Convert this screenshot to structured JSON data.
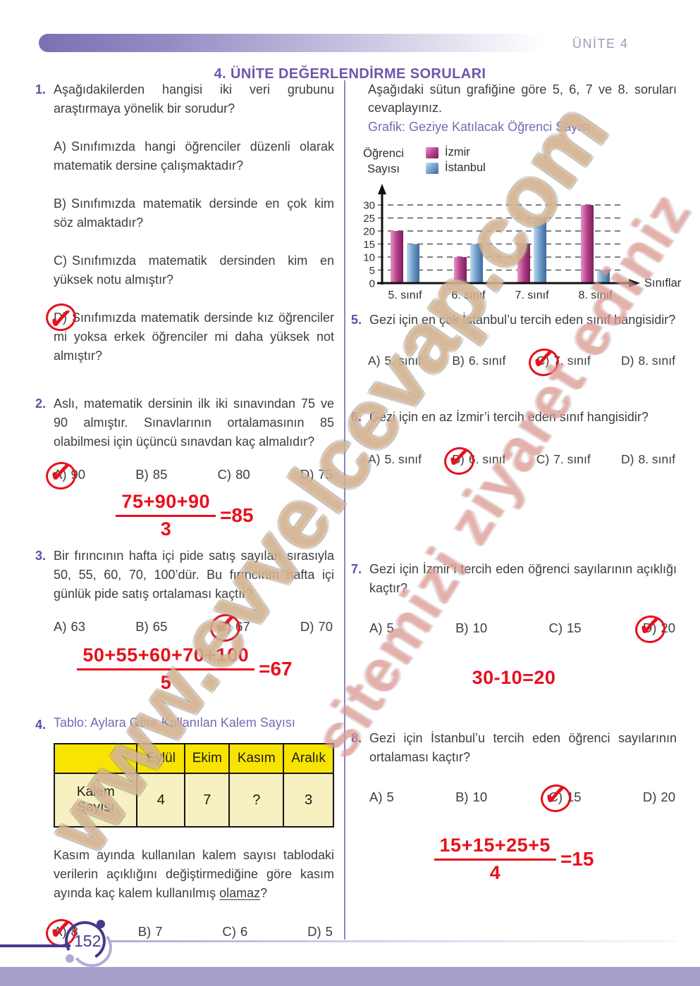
{
  "page": {
    "unit_label": "ÜNİTE 4",
    "title": "4. ÜNİTE DEĞERLENDİRME SORULARI",
    "page_number": "152"
  },
  "watermark": {
    "line1": "www.evvelcevap.com",
    "line2": "sitemizi ziyaret ediniz"
  },
  "right_intro": {
    "text": "Aşağıdaki sütun grafiğine göre 5, 6, 7 ve 8. soruları cevaplayınız.",
    "graph_caption": "Grafik: Geziye Katılacak Öğrenci Sayısı"
  },
  "chart_data": {
    "type": "bar",
    "title": "Geziye Katılacak Öğrenci Sayısı",
    "ylabel": "Öğrenci Sayısı",
    "xlabel": "Sınıflar",
    "categories": [
      "5. sınıf",
      "6. sınıf",
      "7. sınıf",
      "8. sınıf"
    ],
    "series": [
      {
        "name": "İzmir",
        "values": [
          20,
          10,
          15,
          30
        ],
        "colors": [
          "#e795c9",
          "#b23f86",
          "#7a1e5a"
        ]
      },
      {
        "name": "İstanbul",
        "values": [
          15,
          15,
          25,
          5
        ],
        "colors": [
          "#c3daf0",
          "#6d9dca",
          "#3f689a"
        ]
      }
    ],
    "yticks": [
      0,
      5,
      10,
      15,
      20,
      25,
      30
    ],
    "ylim": [
      0,
      32
    ],
    "grid": "dashed-horizontal",
    "legend_position": "top-left"
  },
  "questions": {
    "q1": {
      "number": "1.",
      "text": "Aşağıdakilerden hangisi iki veri grubunu araştırmaya yönelik bir sorudur?",
      "options": [
        {
          "letter": "A)",
          "text": "Sınıfımızda hangi öğrenciler düzenli olarak matematik dersine çalışmaktadır?",
          "marked": false
        },
        {
          "letter": "B)",
          "text": "Sınıfımızda matematik dersinde en çok kim söz almaktadır?",
          "marked": false
        },
        {
          "letter": "C)",
          "text": "Sınıfımızda matematik dersinden kim en yüksek notu almıştır?",
          "marked": false
        },
        {
          "letter": "D)",
          "text": "Sınıfımızda matematik dersinde kız öğrenciler mi yoksa erkek öğrenciler mi daha yüksek not almıştır?",
          "marked": true
        }
      ]
    },
    "q2": {
      "number": "2.",
      "text": "Aslı, matematik dersinin ilk iki sınavından 75 ve 90 almıştır. Sınavlarının ortalamasının 85 olabilmesi için üçüncü sınavdan kaç almalıdır?",
      "options": [
        {
          "letter": "A)",
          "text": "90",
          "marked": true
        },
        {
          "letter": "B)",
          "text": "85",
          "marked": false
        },
        {
          "letter": "C)",
          "text": "80",
          "marked": false
        },
        {
          "letter": "D)",
          "text": "75",
          "marked": false
        }
      ],
      "solution": {
        "numerator": "75+90+90",
        "denominator": "3",
        "result": "=85"
      }
    },
    "q3": {
      "number": "3.",
      "text": "Bir fırıncının hafta içi pide satış sayıları sırasıyla 50, 55, 60, 70, 100’dür. Bu fırıncının hafta içi günlük pide satış ortalaması kaçtır?",
      "options": [
        {
          "letter": "A)",
          "text": "63",
          "marked": false
        },
        {
          "letter": "B)",
          "text": "65",
          "marked": false
        },
        {
          "letter": "C)",
          "text": "67",
          "marked": true
        },
        {
          "letter": "D)",
          "text": "70",
          "marked": false
        }
      ],
      "solution": {
        "numerator": "50+55+60+70+100",
        "denominator": "5",
        "result": "=67"
      }
    },
    "q4": {
      "number": "4.",
      "caption": "Tablo: Aylara Göre Kullanılan Kalem Sayısı",
      "table": {
        "col_headers": [
          "Eylül",
          "Ekim",
          "Kasım",
          "Aralık"
        ],
        "row_label": "Kalem Sayısı",
        "values": [
          "4",
          "7",
          "?",
          "3"
        ]
      },
      "body": "Kasım ayında kullanılan kalem sayısı tablodaki verilerin açıklığını değiştirmediğine göre kasım ayında kaç kalem kullanılmış",
      "underlined": "olamaz",
      "suffix": "?",
      "options": [
        {
          "letter": "A)",
          "text": "8",
          "marked": true
        },
        {
          "letter": "B)",
          "text": "7",
          "marked": false
        },
        {
          "letter": "C)",
          "text": "6",
          "marked": false
        },
        {
          "letter": "D)",
          "text": "5",
          "marked": false
        }
      ]
    },
    "q5": {
      "number": "5.",
      "text": "Gezi için en çok İstanbul’u tercih eden sınıf hangisidir?",
      "options": [
        {
          "letter": "A)",
          "text": "5. sınıf",
          "marked": false
        },
        {
          "letter": "B)",
          "text": "6. sınıf",
          "marked": false
        },
        {
          "letter": "C)",
          "text": "7. sınıf",
          "marked": true
        },
        {
          "letter": "D)",
          "text": "8. sınıf",
          "marked": false
        }
      ]
    },
    "q6": {
      "number": "6.",
      "text": "Gezi için en az İzmir’i tercih eden sınıf hangisidir?",
      "options": [
        {
          "letter": "A)",
          "text": "5. sınıf",
          "marked": false
        },
        {
          "letter": "B)",
          "text": "6. sınıf",
          "marked": true
        },
        {
          "letter": "C)",
          "text": "7. sınıf",
          "marked": false
        },
        {
          "letter": "D)",
          "text": "8. sınıf",
          "marked": false
        }
      ]
    },
    "q7": {
      "number": "7.",
      "text": "Gezi için İzmir’i tercih eden öğrenci sayılarının açıklığı kaçtır?",
      "options": [
        {
          "letter": "A)",
          "text": "5",
          "marked": false
        },
        {
          "letter": "B)",
          "text": "10",
          "marked": false
        },
        {
          "letter": "C)",
          "text": "15",
          "marked": false
        },
        {
          "letter": "D)",
          "text": "20",
          "marked": true
        }
      ],
      "solution_plain": "30-10=20"
    },
    "q8": {
      "number": "8.",
      "text": "Gezi için İstanbul’u tercih eden öğrenci sayılarının ortalaması kaçtır?",
      "options": [
        {
          "letter": "A)",
          "text": "5",
          "marked": false
        },
        {
          "letter": "B)",
          "text": "10",
          "marked": false
        },
        {
          "letter": "C)",
          "text": "15",
          "marked": true
        },
        {
          "letter": "D)",
          "text": "20",
          "marked": false
        }
      ],
      "solution": {
        "numerator": "15+15+25+5",
        "denominator": "4",
        "result": "=15"
      }
    }
  },
  "colors": {
    "accent_purple": "#6f55ab",
    "caption_purple": "#7a68b2",
    "divider_purple": "#9184c4",
    "unit_label_gray": "#9b99b9",
    "red_annotation": "#e8101c",
    "table_header_yellow": "#f8e400",
    "table_cell_cream": "#f7f0c0",
    "footer_dark_purple": "#46398e",
    "footer_light_purple": "#b3abd6",
    "bottom_bar_purple": "#a79ecb"
  }
}
